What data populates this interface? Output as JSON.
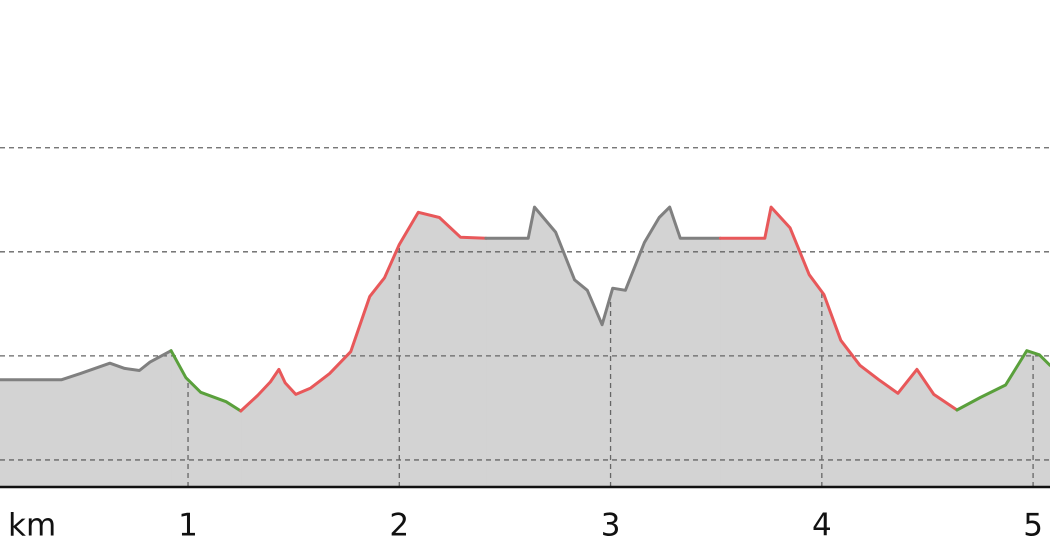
{
  "chart_data": {
    "type": "line",
    "x_label": "km",
    "xlim": [
      0.11,
      5.08
    ],
    "xticks": [
      1,
      2,
      3,
      4,
      5
    ],
    "ylim": [
      7.4,
      54.2
    ],
    "yticks": [
      {
        "value": 10,
        "label": null
      },
      {
        "value": 20,
        "label": null
      },
      {
        "value": 30,
        "label": null
      },
      {
        "value": 40,
        "label": null
      }
    ],
    "grid": true,
    "area_color": "#d3d3d3",
    "series": [
      {
        "color": "#808080",
        "x": [
          0.11,
          0.4,
          0.49,
          0.63,
          0.7,
          0.77,
          0.82,
          0.92
        ],
        "values": [
          17.7,
          17.7,
          18.3,
          19.3,
          18.8,
          18.6,
          19.4,
          20.5
        ]
      },
      {
        "color": "#5aa03c",
        "x": [
          0.92,
          0.99,
          1.06,
          1.18,
          1.25
        ],
        "values": [
          20.5,
          17.9,
          16.5,
          15.6,
          14.7
        ]
      },
      {
        "color": "#e8585a",
        "x": [
          1.25,
          1.33,
          1.39,
          1.43,
          1.46,
          1.51,
          1.58,
          1.67,
          1.77,
          1.86,
          1.93,
          2.0,
          2.09,
          2.19,
          2.29,
          2.41
        ],
        "values": [
          14.7,
          16.2,
          17.5,
          18.7,
          17.4,
          16.3,
          16.9,
          18.3,
          20.4,
          25.7,
          27.5,
          30.7,
          33.8,
          33.3,
          31.4,
          31.3
        ]
      },
      {
        "color": "#808080",
        "x": [
          2.41,
          2.61,
          2.64,
          2.74,
          2.83,
          2.89,
          2.96,
          3.01,
          3.07,
          3.16,
          3.23,
          3.28,
          3.33,
          3.52
        ],
        "values": [
          31.3,
          31.3,
          34.3,
          31.9,
          27.3,
          26.3,
          23.0,
          26.5,
          26.3,
          30.9,
          33.3,
          34.3,
          31.3,
          31.3
        ]
      },
      {
        "color": "#e8585a",
        "x": [
          3.52,
          3.73,
          3.76,
          3.85,
          3.94,
          4.01,
          4.09,
          4.18,
          4.27,
          4.36,
          4.45,
          4.53,
          4.64
        ],
        "values": [
          31.3,
          31.3,
          34.3,
          32.3,
          27.8,
          25.9,
          21.5,
          19.1,
          17.7,
          16.4,
          18.7,
          16.3,
          14.8
        ]
      },
      {
        "color": "#5aa03c",
        "x": [
          4.64,
          4.75,
          4.87,
          4.97,
          5.03,
          5.08
        ],
        "values": [
          14.8,
          16.0,
          17.2,
          20.5,
          20.1,
          19.1
        ]
      }
    ]
  }
}
